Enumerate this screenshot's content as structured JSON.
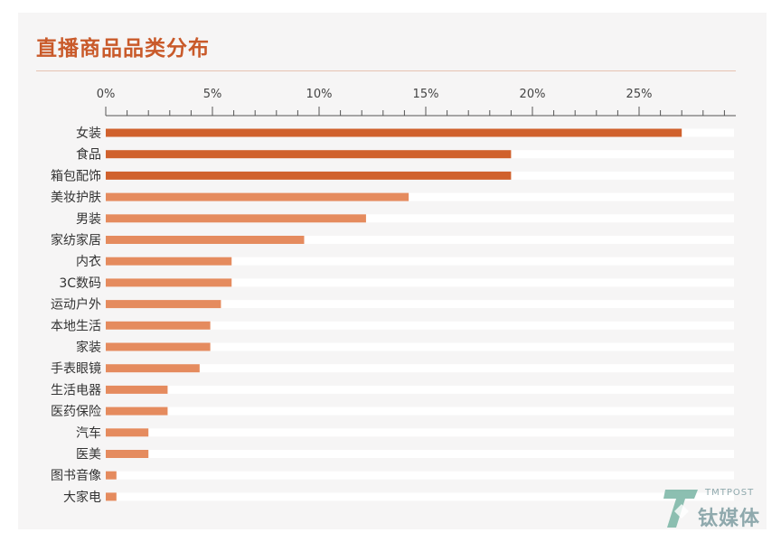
{
  "title": "直播商品品类分布",
  "watermark": {
    "top": "TMTPOST",
    "text": "钛媒体"
  },
  "colors": {
    "dark": "#d0612d",
    "light": "#e58b5e",
    "track": "#ffffff",
    "axis": "#555555",
    "title": "#c95a2a"
  },
  "chart_data": {
    "type": "bar",
    "orientation": "horizontal",
    "title": "直播商品品类分布",
    "xlabel": "",
    "ylabel": "",
    "xlim": [
      0,
      29
    ],
    "x_ticks": [
      "0%",
      "5%",
      "10%",
      "15%",
      "20%",
      "25%"
    ],
    "x_tick_values": [
      0,
      5,
      10,
      15,
      20,
      25
    ],
    "categories": [
      "女装",
      "食品",
      "箱包配饰",
      "美妆护肤",
      "男装",
      "家纺家居",
      "内衣",
      "3C数码",
      "运动户外",
      "本地生活",
      "家装",
      "手表眼镜",
      "生活电器",
      "医药保险",
      "汽车",
      "医美",
      "图书音像",
      "大家电"
    ],
    "values": [
      27.0,
      19.0,
      19.0,
      14.2,
      12.2,
      9.3,
      5.9,
      5.9,
      5.4,
      4.9,
      4.9,
      4.4,
      2.9,
      2.9,
      2.0,
      2.0,
      0.5,
      0.5
    ],
    "highlight_top": 3,
    "grid": false
  }
}
